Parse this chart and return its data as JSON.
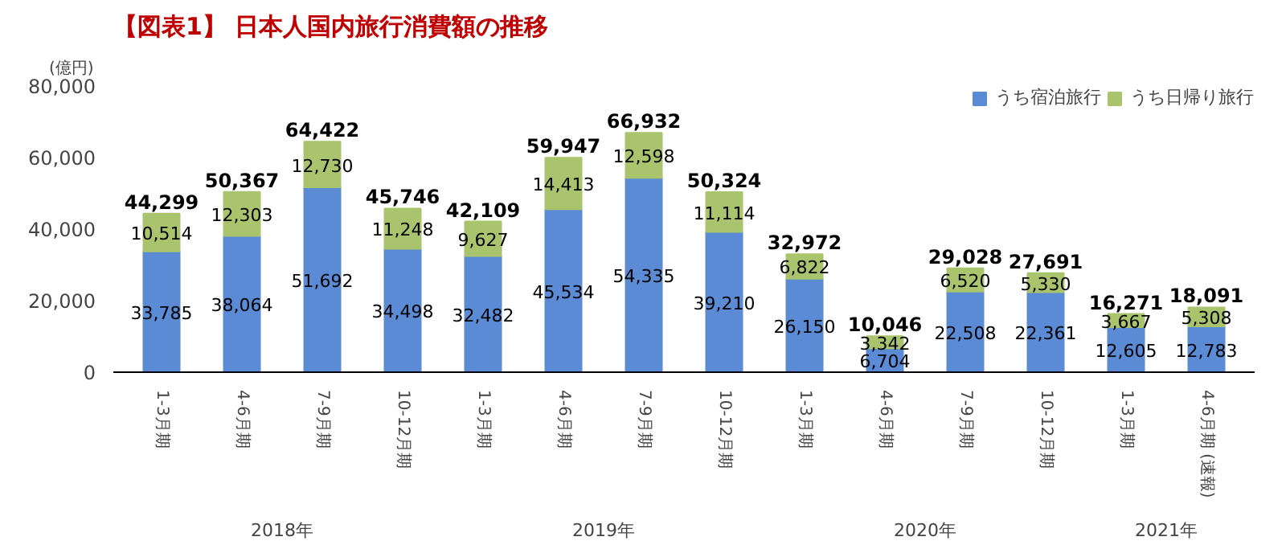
{
  "chart_data": {
    "type": "bar",
    "title": "【図表1】 日本人国内旅行消費額の推移",
    "ylabel": "(億円)",
    "categories": [
      "1-3月期",
      "4-6月期",
      "7-9月期",
      "10-12月期",
      "1-3月期",
      "4-6月期",
      "7-9月期",
      "10-12月期",
      "1-3月期",
      "4-6月期",
      "7-9月期",
      "10-12月期",
      "1-3月期",
      "4-6月期 (速報)"
    ],
    "series": [
      {
        "name": "うち宿泊旅行",
        "color": "#5b8bd5",
        "values": [
          33785,
          38064,
          51692,
          34498,
          32482,
          45534,
          54335,
          39210,
          26150,
          6704,
          22508,
          22361,
          12605,
          12783
        ],
        "value_labels": [
          "33,785",
          "38,064",
          "51,692",
          "34,498",
          "32,482",
          "45,534",
          "54,335",
          "39,210",
          "26,150",
          "6,704",
          "22,508",
          "22,361",
          "12,605",
          "12,783"
        ]
      },
      {
        "name": "うち日帰り旅行",
        "color": "#a9c46c",
        "values": [
          10514,
          12303,
          12730,
          11248,
          9627,
          14413,
          12598,
          11114,
          6822,
          3342,
          6520,
          5330,
          3667,
          5308
        ],
        "value_labels": [
          "10,514",
          "12,303",
          "12,730",
          "11,248",
          "9,627",
          "14,413",
          "12,598",
          "11,114",
          "6,822",
          "3,342",
          "6,520",
          "5,330",
          "3,667",
          "5,308"
        ]
      }
    ],
    "stacked": true,
    "totals": [
      "44,299",
      "50,367",
      "64,422",
      "45,746",
      "42,109",
      "59,947",
      "66,932",
      "50,324",
      "32,972",
      "10,046",
      "29,028",
      "27,691",
      "16,271",
      "18,091"
    ],
    "ylim": [
      0,
      80000
    ],
    "yticks": [
      0,
      {
        "value": 20000,
        "label": "20,000"
      },
      {
        "value": 40000,
        "label": "40,000"
      },
      {
        "value": 60000,
        "label": "60,000"
      },
      {
        "value": 80000,
        "label": "80,000"
      }
    ],
    "annotations": [
      "2018年",
      "2019年",
      "2020年",
      "2021年"
    ],
    "legend": "top right",
    "grid": false
  }
}
